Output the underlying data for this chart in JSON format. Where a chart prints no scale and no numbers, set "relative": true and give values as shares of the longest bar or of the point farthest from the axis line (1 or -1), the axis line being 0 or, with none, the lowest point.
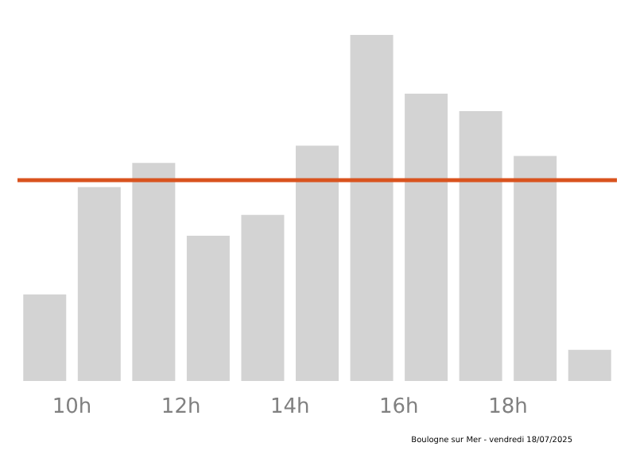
{
  "chart_data": {
    "type": "bar",
    "relative": true,
    "x": [
      9.5,
      10.5,
      11.5,
      12.5,
      13.5,
      14.5,
      15.5,
      16.5,
      17.5,
      18.5,
      19.5
    ],
    "values": [
      0.25,
      0.56,
      0.63,
      0.42,
      0.48,
      0.68,
      1,
      0.83,
      0.78,
      0.65,
      0.09
    ],
    "color": "#d3d3d3",
    "xlim": [
      9,
      20
    ],
    "xticks": [
      {
        "value": 10,
        "label": "10h"
      },
      {
        "value": 12,
        "label": "12h"
      },
      {
        "value": 14,
        "label": "14h"
      },
      {
        "value": 16,
        "label": "16h"
      },
      {
        "value": 18,
        "label": "18h"
      }
    ],
    "ref_lines": [
      {
        "axis": "y",
        "value": 0.58,
        "label": null,
        "color": "#d9531e"
      }
    ],
    "annotations": [
      "Boulogne sur Mer - vendredi 18/07/2025"
    ],
    "grid": false
  }
}
